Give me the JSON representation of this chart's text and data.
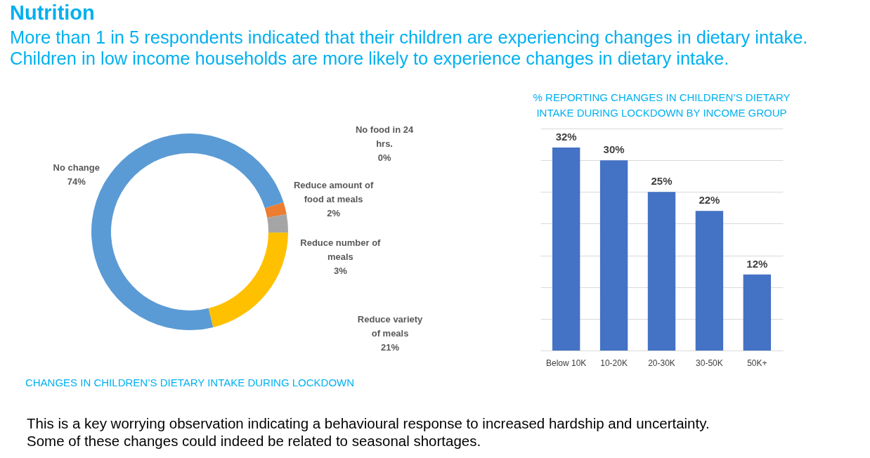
{
  "chart_data": [
    {
      "type": "other",
      "title": "Nutrition",
      "subtitle": "More than 1 in 5 respondents indicated that their children are experiencing changes in dietary intake. Children in low income households are more likely to experience changes in dietary intake.",
      "annotations": [
        "This is a key worrying observation indicating a behavioural response to increased hardship and uncertainty. Some of these changes could indeed be related to seasonal shortages."
      ]
    },
    {
      "type": "donut",
      "title": "CHANGES IN CHILDREN’S DIETARY INTAKE DURING LOCKDOWN",
      "categories": [
        "No change",
        "Reduce amount of food at meals",
        "No food in 24 hrs.",
        "Reduce number of meals",
        "Reduce variety of meals"
      ],
      "values": [
        74,
        2,
        0,
        3,
        21
      ],
      "value_labels": [
        "74%",
        "2%",
        "0%",
        "3%",
        "21%"
      ],
      "colors": [
        "#5b9bd5",
        "#ed7d31",
        null,
        "#a5a5a5",
        "#ffc000"
      ]
    },
    {
      "type": "bar",
      "title": "% REPORTING CHANGES IN CHILDREN’S DIETARY INTAKE DURING LOCKDOWN BY INCOME GROUP",
      "categories": [
        "Below 10K",
        "10-20K",
        "20-30K",
        "30-50K",
        "50K+"
      ],
      "values": [
        32,
        30,
        25,
        22,
        12
      ],
      "value_labels": [
        "32%",
        "30%",
        "25%",
        "22%",
        "12%"
      ],
      "color": "#4472c4",
      "ylim": [
        0,
        35
      ],
      "yticks": [
        {
          "value": 0,
          "label": null
        },
        {
          "value": 5,
          "label": null
        },
        {
          "value": 10,
          "label": null
        },
        {
          "value": 15,
          "label": null
        },
        {
          "value": 20,
          "label": null
        },
        {
          "value": 25,
          "label": null
        },
        {
          "value": 30,
          "label": null
        },
        {
          "value": 35,
          "label": null
        }
      ],
      "grid": "y",
      "tick_labels": "x"
    }
  ]
}
